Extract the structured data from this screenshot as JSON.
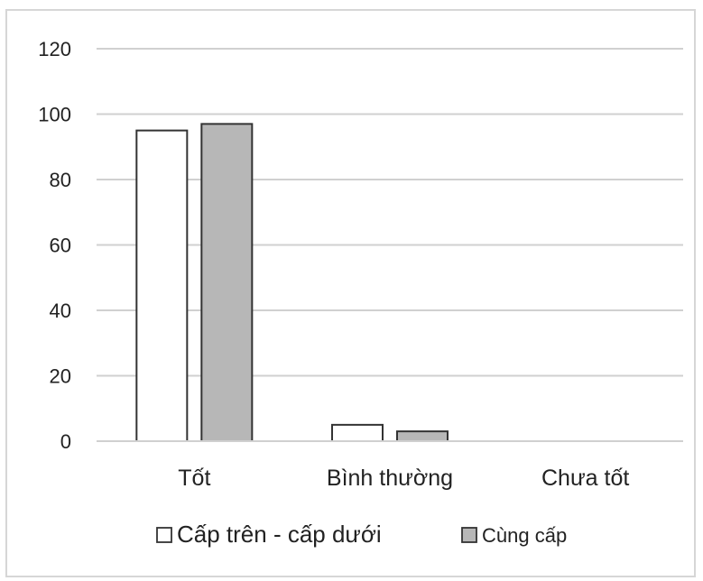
{
  "chart_data": {
    "type": "bar",
    "title": "",
    "xlabel": "",
    "ylabel": "",
    "categories": [
      "Tốt",
      "Bình thường",
      "Chưa tốt"
    ],
    "series": [
      {
        "name": "Cấp trên - cấp dưới",
        "values": [
          95,
          5,
          0
        ],
        "color": "#ffffff"
      },
      {
        "name": "Cùng cấp",
        "values": [
          97,
          3,
          0
        ],
        "color": "#b7b7b7"
      }
    ],
    "ylim": [
      0,
      120
    ],
    "yticks": [
      0,
      20,
      40,
      60,
      80,
      100,
      120
    ],
    "grid": true,
    "legend_position": "bottom"
  }
}
